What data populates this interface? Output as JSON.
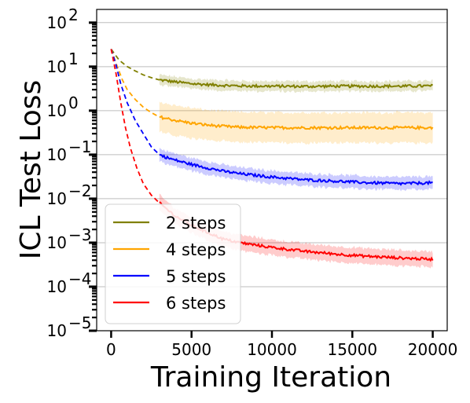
{
  "chart_data": {
    "type": "line",
    "xlabel": "Training Iteration",
    "ylabel": "ICL Test Loss",
    "xlim": [
      -900,
      20900
    ],
    "ylim_log10": [
      -5,
      2.3
    ],
    "y_scale": "log",
    "xticks": [
      0,
      5000,
      10000,
      15000,
      20000
    ],
    "xtick_labels": [
      "0",
      "5000",
      "10000",
      "15000",
      "20000"
    ],
    "ytick_exponents": [
      2,
      1,
      0,
      -1,
      -2,
      -3,
      -4,
      -5
    ],
    "ytick_base": "10",
    "ytick_exponent_labels": [
      "2",
      "1",
      "0",
      "−1",
      "−2",
      "−3",
      "−4",
      "−5"
    ],
    "grid": "horizontal",
    "legend_position": "lower-left",
    "series": [
      {
        "name": "2 steps",
        "color": "#808000",
        "dashed_segment": [
          [
            0,
            25
          ],
          [
            500,
            14
          ],
          [
            1000,
            10
          ],
          [
            1500,
            8
          ],
          [
            2000,
            6.5
          ],
          [
            2500,
            5.6
          ],
          [
            3000,
            5.0
          ]
        ],
        "solid_segment": [
          [
            3000,
            5.0
          ],
          [
            4000,
            4.5
          ],
          [
            5000,
            4.1
          ],
          [
            6000,
            3.9
          ],
          [
            7000,
            3.75
          ],
          [
            8000,
            3.65
          ],
          [
            10000,
            3.6
          ],
          [
            12000,
            3.55
          ],
          [
            14000,
            3.6
          ],
          [
            16000,
            3.6
          ],
          [
            18000,
            3.6
          ],
          [
            20000,
            3.65
          ]
        ],
        "band_factor": 1.3
      },
      {
        "name": "4 steps",
        "color": "#ffa500",
        "dashed_segment": [
          [
            0,
            25
          ],
          [
            300,
            12
          ],
          [
            700,
            5
          ],
          [
            1000,
            3
          ],
          [
            1500,
            1.8
          ],
          [
            2000,
            1.2
          ],
          [
            2500,
            0.9
          ],
          [
            3000,
            0.72
          ]
        ],
        "solid_segment": [
          [
            3000,
            0.72
          ],
          [
            4000,
            0.6
          ],
          [
            5000,
            0.52
          ],
          [
            6000,
            0.47
          ],
          [
            7000,
            0.44
          ],
          [
            8000,
            0.42
          ],
          [
            10000,
            0.41
          ],
          [
            12000,
            0.41
          ],
          [
            14000,
            0.41
          ],
          [
            16000,
            0.41
          ],
          [
            18000,
            0.41
          ],
          [
            20000,
            0.41
          ]
        ],
        "band_factor": 2.2
      },
      {
        "name": "5 steps",
        "color": "#0000ff",
        "dashed_segment": [
          [
            0,
            25
          ],
          [
            300,
            11
          ],
          [
            600,
            4
          ],
          [
            1000,
            1.5
          ],
          [
            1500,
            0.6
          ],
          [
            2000,
            0.3
          ],
          [
            2500,
            0.15
          ],
          [
            3000,
            0.1
          ]
        ],
        "solid_segment": [
          [
            3000,
            0.1
          ],
          [
            3500,
            0.085
          ],
          [
            4000,
            0.075
          ],
          [
            5000,
            0.06
          ],
          [
            6000,
            0.05
          ],
          [
            7000,
            0.042
          ],
          [
            8000,
            0.037
          ],
          [
            10000,
            0.031
          ],
          [
            12000,
            0.027
          ],
          [
            14000,
            0.025
          ],
          [
            16000,
            0.023
          ],
          [
            18000,
            0.022
          ],
          [
            20000,
            0.023
          ]
        ],
        "band_factor": 1.4
      },
      {
        "name": "6 steps",
        "color": "#ff0000",
        "dashed_segment": [
          [
            0,
            25
          ],
          [
            300,
            7
          ],
          [
            600,
            1.5
          ],
          [
            900,
            0.4
          ],
          [
            1200,
            0.14
          ],
          [
            1600,
            0.05
          ],
          [
            2000,
            0.022
          ],
          [
            2500,
            0.012
          ],
          [
            3000,
            0.008
          ]
        ],
        "solid_segment": [
          [
            3000,
            0.008
          ],
          [
            4000,
            0.004
          ],
          [
            5000,
            0.0025
          ],
          [
            6000,
            0.0017
          ],
          [
            7000,
            0.0012
          ],
          [
            8000,
            0.001
          ],
          [
            10000,
            0.00078
          ],
          [
            12000,
            0.00064
          ],
          [
            14000,
            0.00055
          ],
          [
            16000,
            0.00049
          ],
          [
            18000,
            0.00045
          ],
          [
            20000,
            0.00042
          ]
        ],
        "band_factor": 1.5
      }
    ]
  }
}
